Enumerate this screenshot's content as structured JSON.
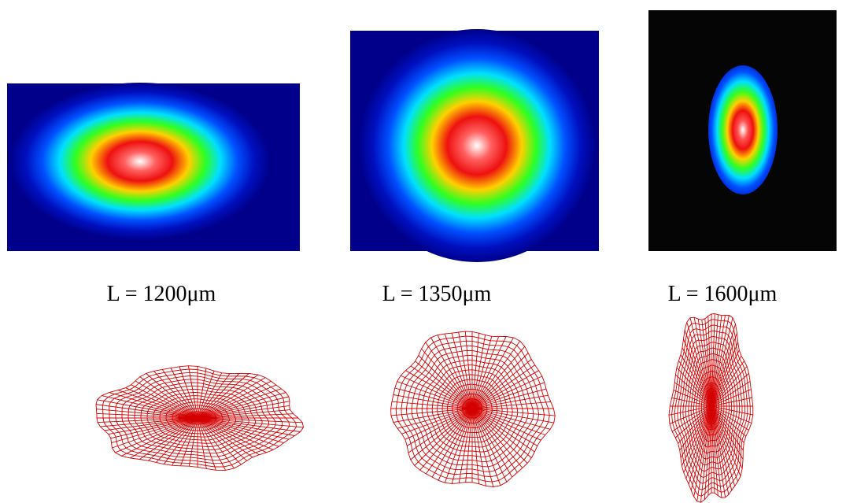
{
  "panels": [
    {
      "label": "L = 1200μm"
    },
    {
      "label": "L = 1350μm"
    },
    {
      "label": "L = 1600μm"
    }
  ]
}
